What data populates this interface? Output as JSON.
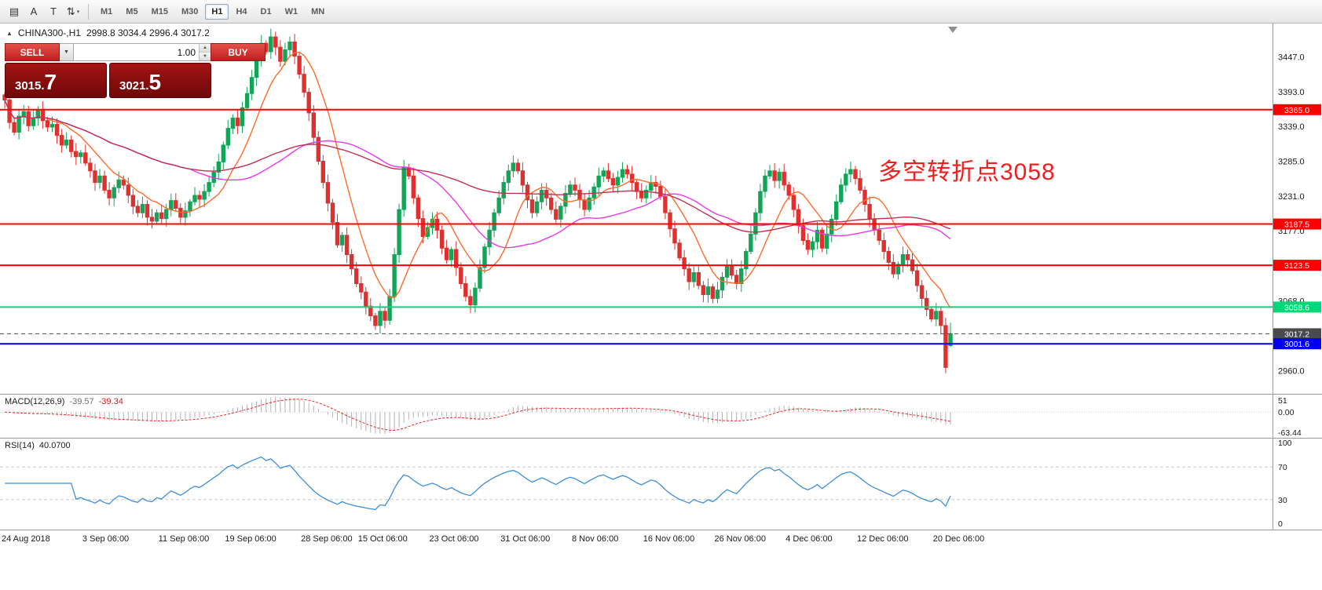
{
  "toolbar": {
    "icons": [
      {
        "name": "tick-levels-icon",
        "glyph": "▤"
      },
      {
        "name": "insert-text-icon",
        "glyph": "A"
      },
      {
        "name": "text-label-icon",
        "glyph": "T"
      },
      {
        "name": "style-selector-icon",
        "glyph": "⇅"
      }
    ],
    "dropdown_caret": "▾",
    "timeframes": [
      "M1",
      "M5",
      "M15",
      "M30",
      "H1",
      "H4",
      "D1",
      "W1",
      "MN"
    ],
    "active_timeframe": "H1"
  },
  "chart_header": {
    "expand_marker": "▲",
    "symbol": "CHINA300-,H1",
    "ohlc": "2998.8 3034.4 2996.4 3017.2"
  },
  "trade_panel": {
    "sell_label": "SELL",
    "buy_label": "BUY",
    "volume": "1.00",
    "dropdown": "▼",
    "spinner_up": "▲",
    "spinner_down": "▼",
    "bid_prefix": "3015.",
    "bid_big": "7",
    "ask_prefix": "3021.",
    "ask_big": "5"
  },
  "annotation": {
    "text": "多空转折点3058",
    "color": "#f41c1c"
  },
  "indicators": {
    "macd": {
      "label": "MACD(12,26,9)",
      "value_main": "-39.57",
      "value_signal": "-39.34",
      "axis_top": "51",
      "axis_zero": "0.00",
      "axis_bottom": "-63.44"
    },
    "rsi": {
      "label": "RSI(14)",
      "value": "40.0700",
      "axis": [
        "100",
        "70",
        "30",
        "0"
      ]
    }
  },
  "chart_data": {
    "type": "candlestick",
    "symbol": "CHINA300-",
    "timeframe": "H1",
    "title": "CHINA300- H1 candlestick chart with 3 moving averages, MACD(12,26,9) and RSI(14)",
    "price_axis": {
      "min": 2930,
      "max": 3495,
      "ticks": [
        3447,
        3393,
        3339,
        3285,
        3231,
        3177,
        3068,
        2960
      ]
    },
    "last_ohlc": {
      "open": 2998.8,
      "high": 3034.4,
      "low": 2996.4,
      "close": 3017.2
    },
    "colors": {
      "up": "#12a457",
      "down": "#df3030"
    },
    "closes": [
      3380,
      3345,
      3330,
      3355,
      3362,
      3340,
      3352,
      3365,
      3348,
      3338,
      3342,
      3325,
      3310,
      3318,
      3300,
      3292,
      3298,
      3282,
      3270,
      3252,
      3262,
      3240,
      3228,
      3244,
      3256,
      3248,
      3232,
      3215,
      3205,
      3218,
      3198,
      3192,
      3205,
      3196,
      3210,
      3224,
      3212,
      3198,
      3208,
      3222,
      3232,
      3226,
      3238,
      3252,
      3268,
      3284,
      3310,
      3336,
      3352,
      3340,
      3368,
      3390,
      3415,
      3442,
      3468,
      3455,
      3478,
      3462,
      3440,
      3458,
      3470,
      3448,
      3420,
      3392,
      3360,
      3322,
      3285,
      3252,
      3220,
      3190,
      3155,
      3170,
      3140,
      3118,
      3095,
      3082,
      3060,
      3045,
      3030,
      3052,
      3038,
      3075,
      3140,
      3210,
      3275,
      3262,
      3228,
      3196,
      3168,
      3182,
      3195,
      3178,
      3150,
      3132,
      3148,
      3120,
      3095,
      3075,
      3062,
      3088,
      3120,
      3152,
      3178,
      3205,
      3228,
      3252,
      3270,
      3282,
      3270,
      3248,
      3225,
      3205,
      3222,
      3240,
      3228,
      3210,
      3195,
      3215,
      3235,
      3248,
      3240,
      3225,
      3210,
      3228,
      3245,
      3262,
      3270,
      3258,
      3248,
      3260,
      3272,
      3265,
      3252,
      3238,
      3228,
      3240,
      3252,
      3246,
      3230,
      3205,
      3180,
      3158,
      3135,
      3118,
      3098,
      3112,
      3092,
      3078,
      3090,
      3072,
      3085,
      3105,
      3122,
      3108,
      3095,
      3118,
      3145,
      3172,
      3205,
      3238,
      3262,
      3270,
      3255,
      3268,
      3248,
      3232,
      3210,
      3185,
      3162,
      3148,
      3160,
      3178,
      3150,
      3172,
      3195,
      3222,
      3248,
      3265,
      3272,
      3258,
      3240,
      3218,
      3195,
      3178,
      3162,
      3145,
      3128,
      3110,
      3125,
      3140,
      3132,
      3115,
      3092,
      3072,
      3055,
      3040,
      3052,
      3030,
      2965,
      3017.2
    ],
    "ma_lines": [
      {
        "name": "fast-ma",
        "period": 10,
        "color": "#ff6a2a"
      },
      {
        "name": "medium-ma",
        "period": 40,
        "color": "#e83ae8"
      },
      {
        "name": "slow-ma",
        "period": 90,
        "color": "#c03050"
      }
    ],
    "hlines": [
      {
        "price": 3365.0,
        "label": "3365.0",
        "color": "#ff0000"
      },
      {
        "price": 3187.5,
        "label": "3187.5",
        "color": "#ff0000"
      },
      {
        "price": 3123.5,
        "label": "3123.5",
        "color": "#ff0000"
      },
      {
        "price": 3058.6,
        "label": "3058.6",
        "color": "#00d878"
      },
      {
        "price": 3017.2,
        "label": "3017.2",
        "color": "#4a4a4a",
        "style": "dash"
      },
      {
        "price": 3001.6,
        "label": "3001.6",
        "color": "#0000ee"
      }
    ],
    "time_ticks": [
      {
        "label": "24 Aug 2018",
        "i": 0
      },
      {
        "label": "3 Sep 06:00",
        "i": 17
      },
      {
        "label": "11 Sep 06:00",
        "i": 33
      },
      {
        "label": "19 Sep 06:00",
        "i": 47
      },
      {
        "label": "28 Sep 06:00",
        "i": 63
      },
      {
        "label": "15 Oct 06:00",
        "i": 75
      },
      {
        "label": "23 Oct 06:00",
        "i": 90
      },
      {
        "label": "31 Oct 06:00",
        "i": 105
      },
      {
        "label": "8 Nov 06:00",
        "i": 120
      },
      {
        "label": "16 Nov 06:00",
        "i": 135
      },
      {
        "label": "26 Nov 06:00",
        "i": 150
      },
      {
        "label": "4 Dec 06:00",
        "i": 165
      },
      {
        "label": "12 Dec 06:00",
        "i": 180
      },
      {
        "label": "20 Dec 06:00",
        "i": 196
      }
    ],
    "macd": {
      "fast": 12,
      "slow": 26,
      "signal": 9,
      "hist_color": "#b2b2b2",
      "signal_color": "#ee2222"
    },
    "rsi": {
      "period": 14,
      "color": "#3e8ed8",
      "levels": [
        70,
        30
      ]
    }
  }
}
